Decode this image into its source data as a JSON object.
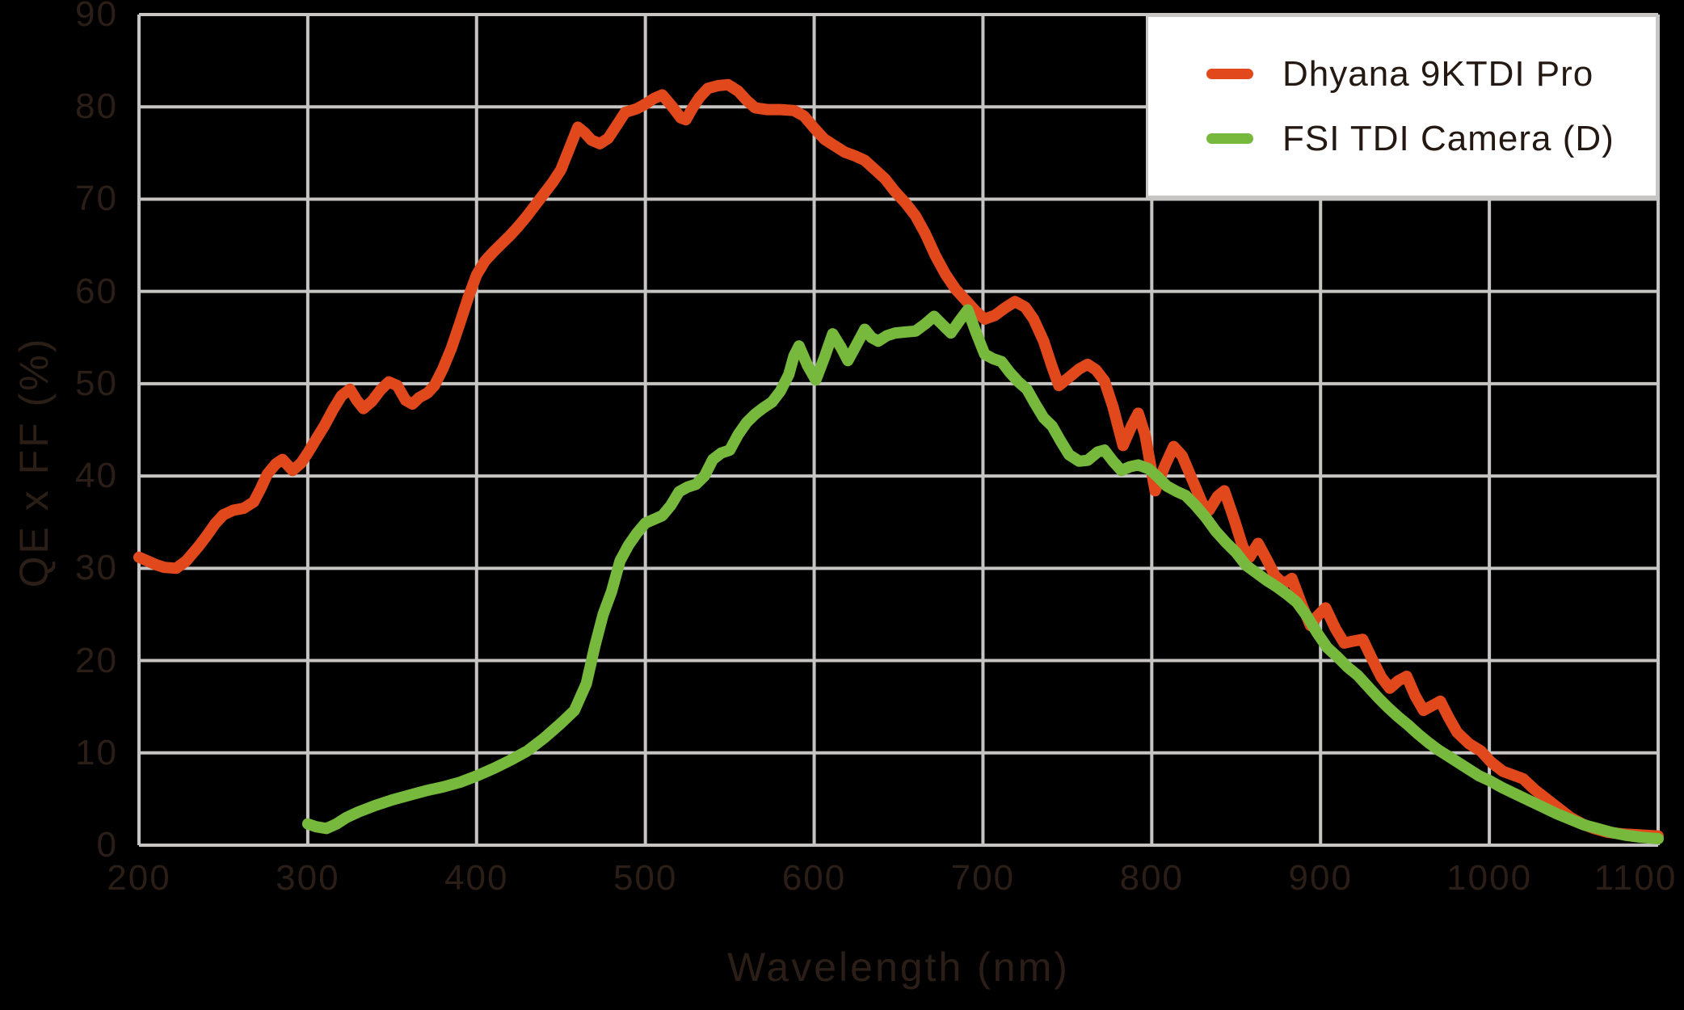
{
  "colors": {
    "background": "#000000",
    "grid": "#c7c5c4",
    "axis_text": "#2b1e17",
    "legend_background": "#ffffff",
    "legend_border": "#c8c6c5",
    "legend_text": "#241813",
    "dhyana_red": "#e1481c",
    "fsi_green": "#76b93c"
  },
  "chart_data": {
    "type": "line",
    "title": "",
    "xlabel": "Wavelength (nm)",
    "ylabel": "QE x FF (%)",
    "xlim": [
      200,
      1100
    ],
    "ylim": [
      0,
      90
    ],
    "x_ticks": [
      200,
      300,
      400,
      500,
      600,
      700,
      800,
      900,
      1000,
      1100
    ],
    "y_ticks": [
      0,
      10,
      20,
      30,
      40,
      50,
      60,
      70,
      80,
      90
    ],
    "grid": true,
    "legend_position": "top-right",
    "series": [
      {
        "name": "Dhyana 9KTDI Pro",
        "color": "#e1481c",
        "points": [
          [
            200,
            31.2
          ],
          [
            205,
            30.8
          ],
          [
            210,
            30.4
          ],
          [
            215,
            30.1
          ],
          [
            222,
            30.0
          ],
          [
            228,
            30.8
          ],
          [
            235,
            32.3
          ],
          [
            240,
            33.5
          ],
          [
            245,
            34.8
          ],
          [
            250,
            35.8
          ],
          [
            256,
            36.3
          ],
          [
            262,
            36.5
          ],
          [
            268,
            37.2
          ],
          [
            272,
            38.6
          ],
          [
            276,
            40.2
          ],
          [
            281,
            41.3
          ],
          [
            285,
            41.8
          ],
          [
            291,
            40.6
          ],
          [
            296,
            41.4
          ],
          [
            300,
            42.5
          ],
          [
            305,
            44.0
          ],
          [
            310,
            45.5
          ],
          [
            315,
            47.2
          ],
          [
            320,
            48.7
          ],
          [
            325,
            49.4
          ],
          [
            329,
            48.2
          ],
          [
            333,
            47.3
          ],
          [
            338,
            48.1
          ],
          [
            343,
            49.3
          ],
          [
            348,
            50.2
          ],
          [
            353,
            49.8
          ],
          [
            358,
            48.2
          ],
          [
            362,
            47.8
          ],
          [
            366,
            48.5
          ],
          [
            371,
            49.0
          ],
          [
            375,
            49.8
          ],
          [
            380,
            51.6
          ],
          [
            385,
            53.8
          ],
          [
            390,
            56.5
          ],
          [
            395,
            59.3
          ],
          [
            400,
            61.8
          ],
          [
            405,
            63.3
          ],
          [
            410,
            64.3
          ],
          [
            415,
            65.2
          ],
          [
            420,
            66.1
          ],
          [
            425,
            67.1
          ],
          [
            430,
            68.2
          ],
          [
            435,
            69.4
          ],
          [
            440,
            70.6
          ],
          [
            445,
            71.8
          ],
          [
            450,
            73.2
          ],
          [
            455,
            75.5
          ],
          [
            460,
            77.8
          ],
          [
            464,
            77.2
          ],
          [
            468,
            76.4
          ],
          [
            473,
            76.0
          ],
          [
            478,
            76.6
          ],
          [
            483,
            78.0
          ],
          [
            488,
            79.4
          ],
          [
            495,
            79.8
          ],
          [
            500,
            80.3
          ],
          [
            505,
            80.9
          ],
          [
            510,
            81.3
          ],
          [
            516,
            80.0
          ],
          [
            521,
            78.8
          ],
          [
            524,
            78.6
          ],
          [
            528,
            79.9
          ],
          [
            532,
            81.0
          ],
          [
            537,
            82.0
          ],
          [
            543,
            82.3
          ],
          [
            549,
            82.4
          ],
          [
            555,
            81.7
          ],
          [
            560,
            80.7
          ],
          [
            565,
            79.9
          ],
          [
            572,
            79.7
          ],
          [
            580,
            79.7
          ],
          [
            588,
            79.6
          ],
          [
            594,
            79.0
          ],
          [
            600,
            77.7
          ],
          [
            606,
            76.5
          ],
          [
            612,
            75.8
          ],
          [
            618,
            75.1
          ],
          [
            624,
            74.7
          ],
          [
            630,
            74.2
          ],
          [
            636,
            73.2
          ],
          [
            642,
            72.2
          ],
          [
            648,
            70.8
          ],
          [
            654,
            69.6
          ],
          [
            660,
            68.2
          ],
          [
            666,
            66.2
          ],
          [
            672,
            63.8
          ],
          [
            678,
            61.8
          ],
          [
            684,
            60.2
          ],
          [
            690,
            59.0
          ],
          [
            696,
            57.8
          ],
          [
            701,
            57.0
          ],
          [
            707,
            57.4
          ],
          [
            713,
            58.2
          ],
          [
            719,
            58.9
          ],
          [
            725,
            58.3
          ],
          [
            730,
            57.0
          ],
          [
            736,
            54.6
          ],
          [
            741,
            51.8
          ],
          [
            745,
            49.8
          ],
          [
            751,
            50.7
          ],
          [
            757,
            51.6
          ],
          [
            762,
            52.1
          ],
          [
            767,
            51.5
          ],
          [
            772,
            50.3
          ],
          [
            777,
            47.5
          ],
          [
            783,
            43.3
          ],
          [
            788,
            45.4
          ],
          [
            792,
            46.8
          ],
          [
            796,
            44.5
          ],
          [
            802,
            38.4
          ],
          [
            808,
            41.2
          ],
          [
            813,
            43.2
          ],
          [
            818,
            42.2
          ],
          [
            824,
            39.6
          ],
          [
            830,
            37.0
          ],
          [
            834,
            36.3
          ],
          [
            839,
            37.8
          ],
          [
            843,
            38.4
          ],
          [
            849,
            35.2
          ],
          [
            854,
            32.3
          ],
          [
            858,
            31.2
          ],
          [
            863,
            32.7
          ],
          [
            868,
            31.0
          ],
          [
            873,
            29.2
          ],
          [
            878,
            28.3
          ],
          [
            883,
            28.9
          ],
          [
            889,
            26.0
          ],
          [
            894,
            23.8
          ],
          [
            898,
            24.8
          ],
          [
            903,
            25.7
          ],
          [
            909,
            23.4
          ],
          [
            914,
            21.9
          ],
          [
            919,
            22.1
          ],
          [
            925,
            22.3
          ],
          [
            931,
            20.0
          ],
          [
            936,
            18.2
          ],
          [
            941,
            17.0
          ],
          [
            946,
            17.8
          ],
          [
            951,
            18.3
          ],
          [
            956,
            16.2
          ],
          [
            961,
            14.6
          ],
          [
            966,
            15.1
          ],
          [
            971,
            15.6
          ],
          [
            976,
            13.8
          ],
          [
            981,
            12.2
          ],
          [
            988,
            11.0
          ],
          [
            995,
            10.2
          ],
          [
            1001,
            9.0
          ],
          [
            1008,
            8.0
          ],
          [
            1014,
            7.6
          ],
          [
            1020,
            7.2
          ],
          [
            1027,
            6.0
          ],
          [
            1034,
            5.0
          ],
          [
            1041,
            4.0
          ],
          [
            1048,
            3.0
          ],
          [
            1055,
            2.3
          ],
          [
            1062,
            1.8
          ],
          [
            1070,
            1.4
          ],
          [
            1080,
            1.2
          ],
          [
            1090,
            1.1
          ],
          [
            1100,
            1.0
          ]
        ]
      },
      {
        "name": "FSI TDI Camera (D)",
        "color": "#76b93c",
        "points": [
          [
            300,
            2.3
          ],
          [
            305,
            2.0
          ],
          [
            311,
            1.8
          ],
          [
            317,
            2.3
          ],
          [
            323,
            3.0
          ],
          [
            330,
            3.6
          ],
          [
            340,
            4.3
          ],
          [
            350,
            4.9
          ],
          [
            360,
            5.4
          ],
          [
            370,
            5.9
          ],
          [
            380,
            6.3
          ],
          [
            390,
            6.8
          ],
          [
            400,
            7.5
          ],
          [
            410,
            8.3
          ],
          [
            420,
            9.2
          ],
          [
            430,
            10.2
          ],
          [
            440,
            11.6
          ],
          [
            450,
            13.2
          ],
          [
            458,
            14.6
          ],
          [
            465,
            17.5
          ],
          [
            470,
            21.5
          ],
          [
            475,
            25.0
          ],
          [
            480,
            27.5
          ],
          [
            485,
            30.8
          ],
          [
            490,
            32.5
          ],
          [
            495,
            33.8
          ],
          [
            500,
            34.9
          ],
          [
            505,
            35.3
          ],
          [
            510,
            35.7
          ],
          [
            515,
            36.8
          ],
          [
            520,
            38.3
          ],
          [
            525,
            38.8
          ],
          [
            530,
            39.1
          ],
          [
            535,
            40.0
          ],
          [
            540,
            41.8
          ],
          [
            545,
            42.5
          ],
          [
            550,
            42.8
          ],
          [
            555,
            44.5
          ],
          [
            560,
            45.8
          ],
          [
            565,
            46.7
          ],
          [
            570,
            47.4
          ],
          [
            575,
            48.0
          ],
          [
            580,
            49.2
          ],
          [
            585,
            51.0
          ],
          [
            588,
            53.0
          ],
          [
            591,
            54.1
          ],
          [
            596,
            52.0
          ],
          [
            601,
            50.4
          ],
          [
            606,
            52.8
          ],
          [
            611,
            55.4
          ],
          [
            616,
            53.9
          ],
          [
            620,
            52.5
          ],
          [
            625,
            54.2
          ],
          [
            630,
            55.9
          ],
          [
            634,
            55.0
          ],
          [
            638,
            54.6
          ],
          [
            643,
            55.2
          ],
          [
            648,
            55.5
          ],
          [
            654,
            55.6
          ],
          [
            660,
            55.7
          ],
          [
            666,
            56.5
          ],
          [
            671,
            57.3
          ],
          [
            676,
            56.4
          ],
          [
            681,
            55.5
          ],
          [
            686,
            56.8
          ],
          [
            691,
            58.0
          ],
          [
            696,
            55.5
          ],
          [
            701,
            53.2
          ],
          [
            706,
            52.7
          ],
          [
            711,
            52.4
          ],
          [
            716,
            51.2
          ],
          [
            721,
            50.2
          ],
          [
            726,
            49.4
          ],
          [
            731,
            47.8
          ],
          [
            736,
            46.3
          ],
          [
            741,
            45.4
          ],
          [
            746,
            43.8
          ],
          [
            751,
            42.3
          ],
          [
            757,
            41.6
          ],
          [
            762,
            41.7
          ],
          [
            768,
            42.6
          ],
          [
            772,
            42.8
          ],
          [
            777,
            41.6
          ],
          [
            782,
            40.6
          ],
          [
            787,
            41.0
          ],
          [
            792,
            41.2
          ],
          [
            798,
            40.8
          ],
          [
            803,
            40.0
          ],
          [
            809,
            38.9
          ],
          [
            815,
            38.3
          ],
          [
            820,
            37.9
          ],
          [
            826,
            36.8
          ],
          [
            832,
            35.5
          ],
          [
            838,
            34.0
          ],
          [
            844,
            32.8
          ],
          [
            850,
            31.7
          ],
          [
            856,
            30.3
          ],
          [
            862,
            29.5
          ],
          [
            868,
            28.7
          ],
          [
            874,
            28.0
          ],
          [
            880,
            27.2
          ],
          [
            886,
            26.3
          ],
          [
            892,
            24.8
          ],
          [
            898,
            23.0
          ],
          [
            904,
            21.4
          ],
          [
            910,
            20.4
          ],
          [
            916,
            19.3
          ],
          [
            922,
            18.4
          ],
          [
            928,
            17.2
          ],
          [
            934,
            16.0
          ],
          [
            940,
            14.9
          ],
          [
            946,
            13.9
          ],
          [
            952,
            13.0
          ],
          [
            958,
            12.0
          ],
          [
            964,
            11.1
          ],
          [
            970,
            10.3
          ],
          [
            976,
            9.6
          ],
          [
            982,
            8.9
          ],
          [
            988,
            8.2
          ],
          [
            994,
            7.5
          ],
          [
            1000,
            7.0
          ],
          [
            1008,
            6.2
          ],
          [
            1016,
            5.5
          ],
          [
            1024,
            4.8
          ],
          [
            1032,
            4.1
          ],
          [
            1040,
            3.4
          ],
          [
            1048,
            2.8
          ],
          [
            1056,
            2.2
          ],
          [
            1064,
            1.8
          ],
          [
            1072,
            1.4
          ],
          [
            1080,
            1.1
          ],
          [
            1090,
            0.85
          ],
          [
            1100,
            0.7
          ]
        ]
      }
    ]
  }
}
